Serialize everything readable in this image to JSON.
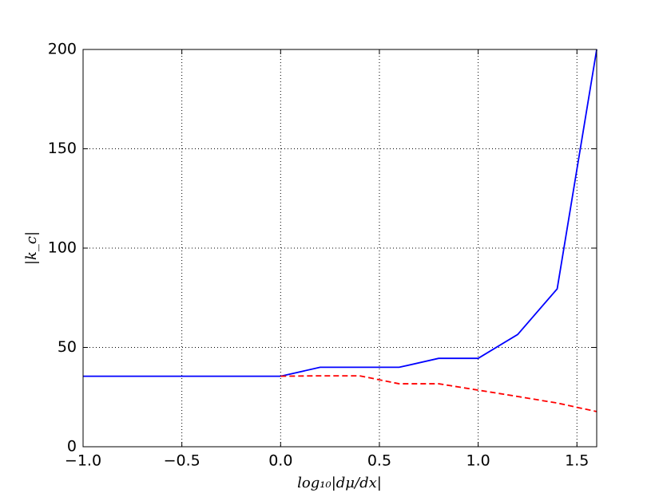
{
  "chart_data": {
    "type": "line",
    "x_label": "log₁₀|dμ/dx|",
    "y_label": "|k_c|",
    "x": [
      -1.0,
      0.0,
      0.2,
      0.4,
      0.6,
      0.8,
      1.0,
      1.2,
      1.4,
      1.6
    ],
    "series": [
      {
        "color": "#0000ff",
        "dashed": false,
        "values": [
          35.5,
          35.5,
          40,
          40,
          40,
          44.5,
          44.5,
          56.5,
          79.5,
          200
        ]
      },
      {
        "color": "#ff0000",
        "dashed": true,
        "values": [
          null,
          35.5,
          35.7,
          35.7,
          31.7,
          31.7,
          28.5,
          25.3,
          22,
          17.7
        ]
      }
    ],
    "xlim": [
      -1.0,
      1.6
    ],
    "ylim": [
      0,
      200
    ],
    "xticks": [
      {
        "value": -1.0,
        "label": "−1.0"
      },
      {
        "value": -0.5,
        "label": "−0.5"
      },
      {
        "value": 0.0,
        "label": "0.0"
      },
      {
        "value": 0.5,
        "label": "0.5"
      },
      {
        "value": 1.0,
        "label": "1.0"
      },
      {
        "value": 1.5,
        "label": "1.5"
      }
    ],
    "yticks": [
      0,
      50,
      100,
      150,
      200
    ],
    "grid": true
  }
}
